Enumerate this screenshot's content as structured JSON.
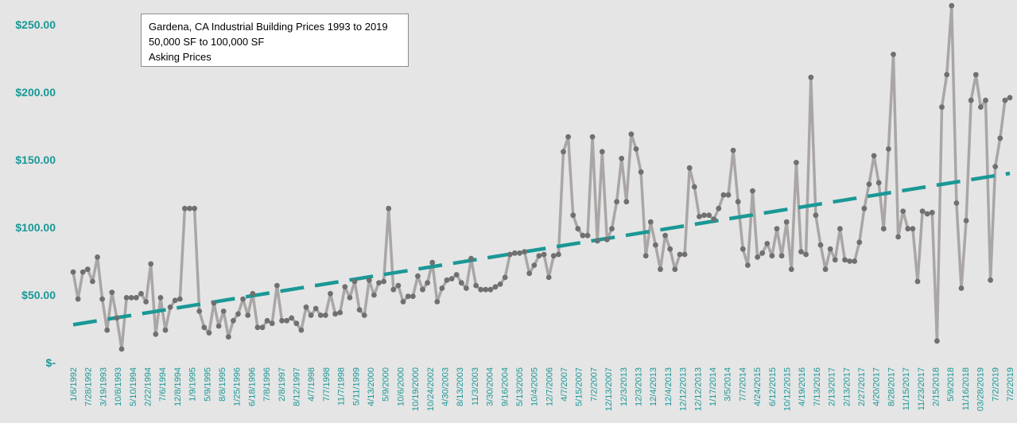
{
  "chart_data": {
    "type": "line",
    "title": "Gardena, CA Industrial Building Prices 1993 to 2019",
    "subtitle": [
      "50,000 SF to 100,000 SF",
      "Asking Prices"
    ],
    "xlabel": "",
    "ylabel": "",
    "ylim": [
      0,
      260
    ],
    "y_ticks": [
      0,
      50,
      100,
      150,
      200,
      250
    ],
    "y_tick_labels": [
      "$-",
      "$50.00",
      "$100.00",
      "$150.00",
      "$200.00",
      "$250.00"
    ],
    "x_tick_labels": [
      "1/6/1992",
      "7/28/1992",
      "3/19/1993",
      "10/8/1993",
      "5/10/1994",
      "2/22/1994",
      "7/6/1994",
      "12/8/1994",
      "1/9/1995",
      "5/9/1995",
      "8/8/1995",
      "1/25/1996",
      "6/18/1996",
      "7/8/1996",
      "2/8/1997",
      "8/12/1997",
      "4/7/1998",
      "7/7/1998",
      "11/7/1998",
      "5/11/1999",
      "4/13/2000",
      "5/9/2000",
      "10/6/2000",
      "10/19/2000",
      "10/24/2002",
      "4/30/2003",
      "8/13/2003",
      "11/3/2003",
      "3/30/2004",
      "9/16/2004",
      "5/13/2005",
      "10/4/2005",
      "12/7/2006",
      "4/7/2007",
      "5/15/2007",
      "7/2/2007",
      "12/13/2007",
      "12/3/2013",
      "12/3/2013",
      "12/4/2013",
      "12/4/2013",
      "12/12/2013",
      "12/12/2013",
      "1/17/2014",
      "3/5/2014",
      "7/7/2014",
      "4/24/2015",
      "6/12/2015",
      "10/12/2015",
      "4/19/2016",
      "7/13/2016",
      "2/13/2017",
      "2/13/2017",
      "2/27/2017",
      "4/20/2017",
      "8/28/2017",
      "11/15/2017",
      "11/23/2017",
      "2/15/2018",
      "5/9/2018",
      "11/16/2018",
      "03/28/2019",
      "7/2/2019",
      "7/2/2019"
    ],
    "series": [
      {
        "role": "asking-price",
        "color": "#aaa6a5",
        "marker_color": "#707070",
        "values": [
          67,
          47,
          67,
          69,
          60,
          78,
          47,
          24,
          52,
          33,
          10,
          48,
          48,
          48,
          51,
          45,
          73,
          21,
          48,
          24,
          41,
          46,
          47,
          114,
          114,
          114,
          38,
          26,
          22,
          44,
          27,
          38,
          19,
          31,
          36,
          47,
          35,
          51,
          26,
          26,
          31,
          29,
          57,
          31,
          31,
          33,
          29,
          24,
          41,
          35,
          40,
          35,
          35,
          51,
          36,
          37,
          56,
          48,
          60,
          39,
          35,
          61,
          50,
          59,
          60,
          114,
          54,
          57,
          45,
          49,
          49,
          64,
          54,
          59,
          74,
          45,
          55,
          61,
          62,
          65,
          59,
          55,
          77,
          57,
          54,
          54,
          54,
          56,
          58,
          63,
          80,
          81,
          81,
          82,
          66,
          72,
          79,
          80,
          63,
          79,
          80,
          156,
          167,
          109,
          99,
          94,
          94,
          167,
          90,
          156,
          91,
          99,
          119,
          151,
          119,
          169,
          158,
          141,
          79,
          104,
          87,
          69,
          94,
          84,
          69,
          80,
          80,
          144,
          130,
          108,
          109,
          109,
          106,
          114,
          124,
          124,
          157,
          119,
          84,
          72,
          127,
          78,
          81,
          88,
          79,
          99,
          79,
          104,
          69,
          148,
          82,
          80,
          211,
          109,
          87,
          69,
          84,
          76,
          99,
          76,
          75,
          75,
          89,
          114,
          132,
          153,
          133,
          99,
          158,
          228,
          93,
          112,
          99,
          99,
          60,
          112,
          110,
          111,
          16,
          189,
          213,
          264,
          118,
          55,
          105,
          194,
          213,
          189,
          194,
          61,
          145,
          166,
          194,
          196
        ]
      },
      {
        "role": "linear-trend",
        "color": "#1a9896",
        "values": [
          28,
          140
        ]
      }
    ],
    "grid": false,
    "legend": "none",
    "colors": {
      "background": "#e5e5e5",
      "axis_label": "#1a9896",
      "series_line": "#aaa6a5",
      "marker": "#707070",
      "trend": "#1a9896",
      "title_border": "#8c8c8c"
    }
  }
}
